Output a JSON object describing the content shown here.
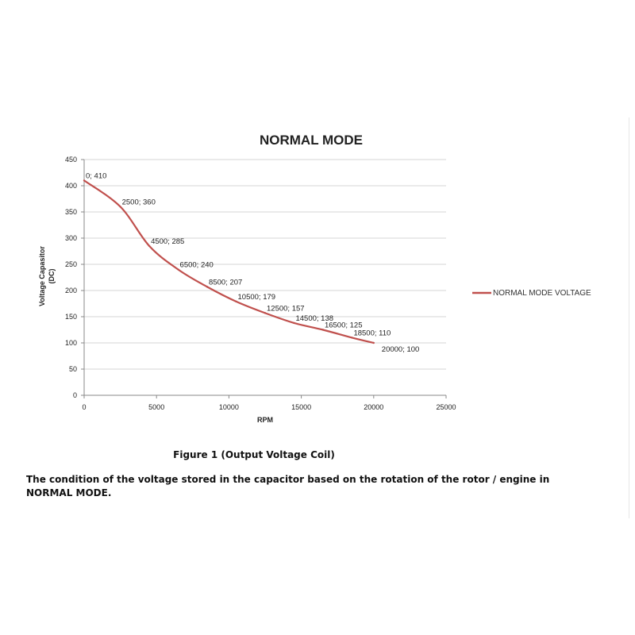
{
  "chart_data": {
    "type": "line",
    "title": "NORMAL MODE",
    "xlabel": "RPM",
    "ylabel": "Voltage Capasitor (DC)",
    "xlim": [
      0,
      25000
    ],
    "ylim": [
      0,
      450
    ],
    "xticks": [
      0,
      5000,
      10000,
      15000,
      20000,
      25000
    ],
    "yticks": [
      0,
      50,
      100,
      150,
      200,
      250,
      300,
      350,
      400,
      450
    ],
    "grid": true,
    "legend_position": "right",
    "series": [
      {
        "name": "NORMAL MODE VOLTAGE",
        "color": "#c0504d",
        "x": [
          0,
          2500,
          4500,
          6500,
          8500,
          10500,
          12500,
          14500,
          16500,
          18500,
          20000
        ],
        "values": [
          410,
          360,
          285,
          240,
          207,
          179,
          157,
          138,
          125,
          110,
          100
        ],
        "point_labels": [
          "0; 410",
          "2500; 360",
          "4500; 285",
          "6500; 240",
          "8500; 207",
          "10500; 179",
          "12500; 157",
          "14500; 138",
          "16500; 125",
          "18500; 110",
          "20000; 100"
        ]
      }
    ]
  },
  "figure": {
    "caption": "Figure 1 (Output Voltage Coil)",
    "description": "The condition of the voltage stored in the capacitor based on the rotation of the rotor / engine in NORMAL MODE."
  }
}
